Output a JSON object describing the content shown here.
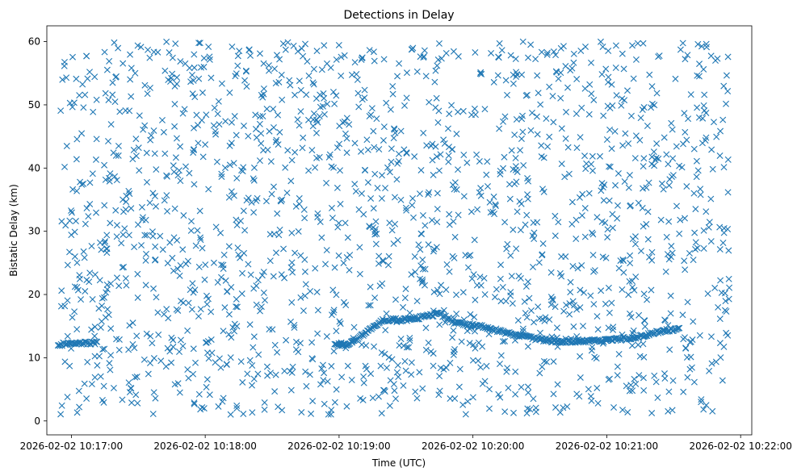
{
  "chart_data": {
    "type": "scatter",
    "title": "Detections in Delay",
    "xlabel": "Time (UTC)",
    "ylabel": "Bistatic Delay (km)",
    "marker": "x",
    "color": "#1f77b4",
    "grid": false,
    "legend": "none",
    "xlim": [
      "2026-02-02 10:16:49",
      "2026-02-02 10:22:05"
    ],
    "ylim": [
      -2.2,
      62.5
    ],
    "xticks": [
      {
        "t": "2026-02-02 10:17:00",
        "label": "2026-02-02 10:17:00"
      },
      {
        "t": "2026-02-02 10:18:00",
        "label": "2026-02-02 10:18:00"
      },
      {
        "t": "2026-02-02 10:19:00",
        "label": "2026-02-02 10:19:00"
      },
      {
        "t": "2026-02-02 10:20:00",
        "label": "2026-02-02 10:20:00"
      },
      {
        "t": "2026-02-02 10:21:00",
        "label": "2026-02-02 10:21:00"
      },
      {
        "t": "2026-02-02 10:22:00",
        "label": "2026-02-02 10:22:00"
      }
    ],
    "yticks": [
      0,
      10,
      20,
      30,
      40,
      50,
      60
    ],
    "track": [
      {
        "x": "2026-02-02 10:16:54",
        "y": 12.1
      },
      {
        "x": "2026-02-02 10:17:06",
        "y": 12.3
      },
      {
        "x": "2026-02-02 10:17:12",
        "y": 12.4
      },
      {
        "x": "2026-02-02 10:18:58",
        "y": 12.1
      },
      {
        "x": "2026-02-02 10:19:04",
        "y": 12.0
      },
      {
        "x": "2026-02-02 10:19:20",
        "y": 16.0
      },
      {
        "x": "2026-02-02 10:19:30",
        "y": 16.0
      },
      {
        "x": "2026-02-02 10:19:40",
        "y": 16.6
      },
      {
        "x": "2026-02-02 10:19:45",
        "y": 17.0
      },
      {
        "x": "2026-02-02 10:19:52",
        "y": 15.5
      },
      {
        "x": "2026-02-02 10:20:05",
        "y": 14.9
      },
      {
        "x": "2026-02-02 10:20:15",
        "y": 13.9
      },
      {
        "x": "2026-02-02 10:20:28",
        "y": 13.0
      },
      {
        "x": "2026-02-02 10:20:37",
        "y": 12.6
      },
      {
        "x": "2026-02-02 10:20:55",
        "y": 12.6
      },
      {
        "x": "2026-02-02 10:21:05",
        "y": 12.9
      },
      {
        "x": "2026-02-02 10:21:14",
        "y": 13.3
      },
      {
        "x": "2026-02-02 10:21:25",
        "y": 14.3
      },
      {
        "x": "2026-02-02 10:21:33",
        "y": 14.6
      }
    ],
    "clutter_summary": {
      "t_start": "2026-02-02 10:16:55",
      "t_end": "2026-02-02 10:21:55",
      "y_min": 1.0,
      "y_max": 60.0
    }
  }
}
